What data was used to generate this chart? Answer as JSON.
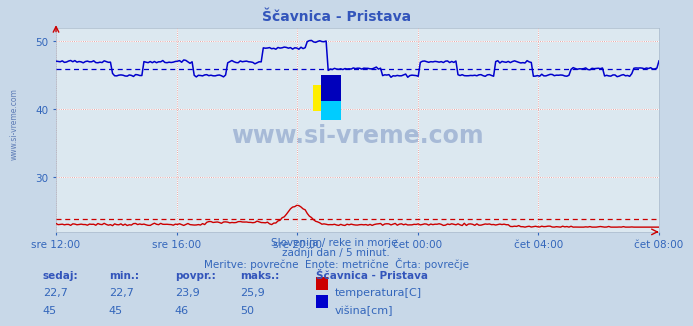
{
  "title": "Ščavnica - Pristava",
  "bg_color": "#c8d8e8",
  "plot_bg_color": "#dce8f0",
  "title_color": "#3355bb",
  "xlabel_color": "#3366bb",
  "text_color": "#3366bb",
  "ylim_visina": [
    22,
    52
  ],
  "ylim_temp": [
    22,
    52
  ],
  "yticks": [
    30,
    40,
    50
  ],
  "x_labels": [
    "sre 12:00",
    "sre 16:00",
    "sre 20:00",
    "čet 00:00",
    "čet 04:00",
    "čet 08:00"
  ],
  "x_positions": [
    0,
    48,
    96,
    144,
    192,
    240
  ],
  "n_points": 289,
  "temp_avg": 23.9,
  "temp_color": "#cc0000",
  "visina_avg": 46.0,
  "visina_color": "#0000cc",
  "watermark_color": "#4466aa",
  "watermark_alpha": 0.35,
  "footer_line1": "Slovenija / reke in morje.",
  "footer_line2": "zadnji dan / 5 minut.",
  "footer_line3": "Meritve: povrečne  Enote: metrične  Črta: povrečje",
  "legend_title": "Ščavnica - Pristava",
  "label_sedaj": "sedaj:",
  "label_min": "min.:",
  "label_povpr": "povpr.:",
  "label_maks": "maks.:",
  "temp_label": "temperatura[C]",
  "visina_label": "višina[cm]",
  "temp_sedaj": "22,7",
  "temp_min_str": "22,7",
  "temp_povpr_str": "23,9",
  "temp_maks_str": "25,9",
  "vis_sedaj": "45",
  "vis_min_str": "45",
  "vis_povpr_str": "46",
  "vis_maks_str": "50",
  "logo_colors": [
    "#ffff00",
    "#00ccff",
    "#0000cc"
  ],
  "grid_h_color": "#ffffff",
  "grid_v_color": "#ffffff",
  "dot_h_color": "#dd8888",
  "dot_v_color": "#dd8888"
}
